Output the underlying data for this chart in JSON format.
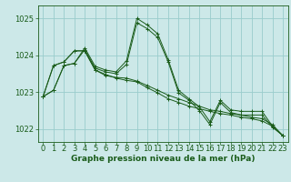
{
  "title": "",
  "xlabel": "Graphe pression niveau de la mer (hPa)",
  "background_color": "#cce8e8",
  "grid_color": "#99cccc",
  "line_color": "#1a5c1a",
  "ylim_min": 1021.65,
  "ylim_max": 1025.35,
  "xlim_min": -0.5,
  "xlim_max": 23.5,
  "yticks": [
    1022,
    1023,
    1024,
    1025
  ],
  "xticks": [
    0,
    1,
    2,
    3,
    4,
    5,
    6,
    7,
    8,
    9,
    10,
    11,
    12,
    13,
    14,
    15,
    16,
    17,
    18,
    19,
    20,
    21,
    22,
    23
  ],
  "series": [
    [
      1022.88,
      1023.05,
      1023.72,
      1023.78,
      1024.2,
      1023.7,
      1023.6,
      1023.55,
      1023.85,
      1025.0,
      1024.82,
      1024.58,
      1023.88,
      1023.05,
      1022.82,
      1022.6,
      1022.2,
      1022.78,
      1022.52,
      1022.48,
      1022.48,
      1022.48,
      1022.08,
      1021.82
    ],
    [
      1022.88,
      1023.72,
      1023.82,
      1024.12,
      1024.12,
      1023.6,
      1023.48,
      1023.38,
      1023.32,
      1023.28,
      1023.12,
      1022.98,
      1022.82,
      1022.72,
      1022.62,
      1022.55,
      1022.48,
      1022.42,
      1022.38,
      1022.32,
      1022.28,
      1022.22,
      1022.08,
      1021.82
    ],
    [
      1022.88,
      1023.72,
      1023.82,
      1024.12,
      1024.12,
      1023.6,
      1023.45,
      1023.4,
      1023.38,
      1023.3,
      1023.18,
      1023.05,
      1022.92,
      1022.82,
      1022.72,
      1022.62,
      1022.52,
      1022.48,
      1022.42,
      1022.38,
      1022.32,
      1022.28,
      1022.12,
      1021.82
    ],
    [
      1022.88,
      1023.05,
      1023.72,
      1023.78,
      1024.15,
      1023.65,
      1023.55,
      1023.5,
      1023.75,
      1024.88,
      1024.72,
      1024.48,
      1023.82,
      1022.98,
      1022.78,
      1022.5,
      1022.12,
      1022.72,
      1022.45,
      1022.38,
      1022.38,
      1022.38,
      1022.05,
      1021.82
    ]
  ],
  "tick_fontsize": 6,
  "xlabel_fontsize": 6.5
}
